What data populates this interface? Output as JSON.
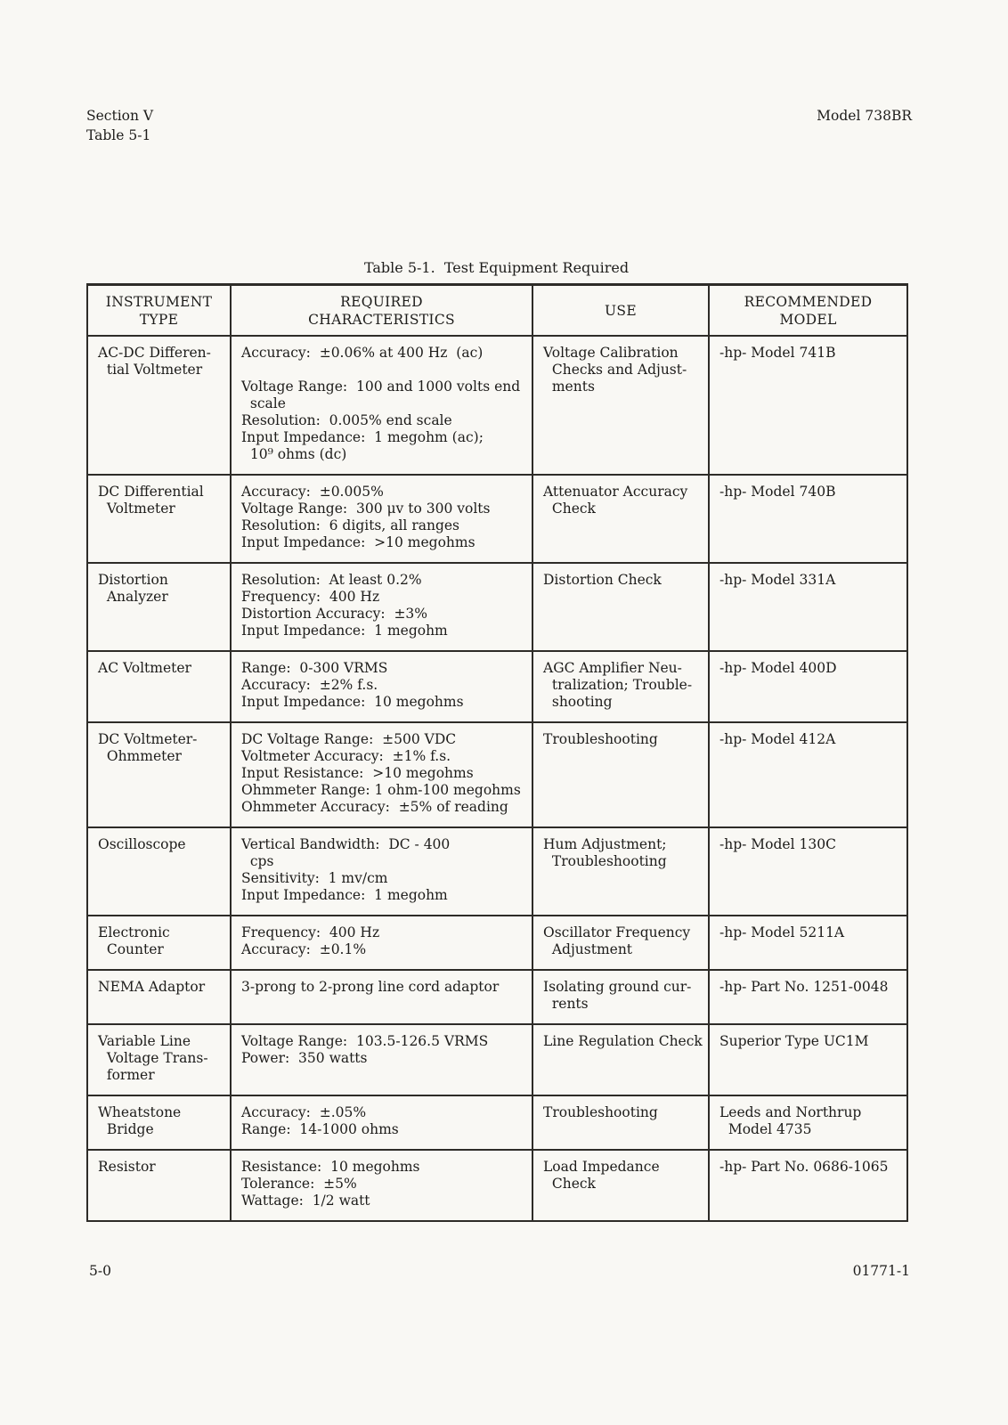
{
  "page": {
    "header": {
      "left": "Section V\nTable 5-1",
      "right": "Model 738BR"
    },
    "footer": {
      "left": "5-0",
      "right": "01771-1"
    }
  },
  "colors": {
    "paper": "#f9f8f4",
    "ink": "#1d1c1a"
  },
  "table": {
    "title": "Table 5-1.  Test Equipment Required",
    "columns": [
      "INSTRUMENT\nTYPE",
      "REQUIRED\nCHARACTERISTICS",
      "USE",
      "RECOMMENDED\nMODEL"
    ],
    "rows": [
      {
        "instrument": "AC-DC Differen-\n  tial Voltmeter",
        "characteristics": "Accuracy:  ±0.06% at 400 Hz  (ac)\n\nVoltage Range:  100 and 1000 volts end\n  scale\nResolution:  0.005% end scale\nInput Impedance:  1 megohm (ac);\n  10⁹ ohms (dc)",
        "use": "Voltage Calibration\n  Checks and Adjust-\n  ments",
        "model": "-hp- Model 741B"
      },
      {
        "instrument": "DC Differential\n  Voltmeter",
        "characteristics": "Accuracy:  ±0.005%\nVoltage Range:  300 μv to 300 volts\nResolution:  6 digits, all ranges\nInput Impedance:  >10 megohms",
        "use": "Attenuator Accuracy\n  Check",
        "model": "-hp- Model 740B"
      },
      {
        "instrument": "Distortion\n  Analyzer",
        "characteristics": "Resolution:  At least 0.2%\nFrequency:  400 Hz\nDistortion Accuracy:  ±3%\nInput Impedance:  1 megohm",
        "use": "Distortion Check",
        "model": "-hp- Model 331A"
      },
      {
        "instrument": "AC Voltmeter",
        "characteristics": "Range:  0-300 VRMS\nAccuracy:  ±2% f.s.\nInput Impedance:  10 megohms",
        "use": "AGC Amplifier Neu-\n  tralization; Trouble-\n  shooting",
        "model": "-hp- Model 400D"
      },
      {
        "instrument": "DC Voltmeter-\n  Ohmmeter",
        "characteristics": "DC Voltage Range:  ±500 VDC\nVoltmeter Accuracy:  ±1% f.s.\nInput Resistance:  >10 megohms\nOhmmeter Range: 1 ohm-100 megohms\nOhmmeter Accuracy:  ±5% of reading",
        "use": "Troubleshooting",
        "model": "-hp- Model 412A"
      },
      {
        "instrument": "Oscilloscope",
        "characteristics": "Vertical Bandwidth:  DC - 400\n  cps\nSensitivity:  1 mv/cm\nInput Impedance:  1 megohm",
        "use": "Hum Adjustment;\n  Troubleshooting",
        "model": "-hp- Model 130C"
      },
      {
        "instrument": "Electronic\n  Counter",
        "characteristics": "Frequency:  400 Hz\nAccuracy:  ±0.1%",
        "use": "Oscillator Frequency\n  Adjustment",
        "model": "-hp- Model 5211A"
      },
      {
        "instrument": "NEMA Adaptor",
        "characteristics": "3-prong to 2-prong line cord adaptor",
        "use": "Isolating ground cur-\n  rents",
        "model": "-hp- Part No. 1251-0048"
      },
      {
        "instrument": "Variable Line\n  Voltage Trans-\n  former",
        "characteristics": "Voltage Range:  103.5-126.5 VRMS\nPower:  350 watts",
        "use": "Line Regulation Check",
        "model": "Superior Type UC1M"
      },
      {
        "instrument": "Wheatstone\n  Bridge",
        "characteristics": "Accuracy:  ±.05%\nRange:  14-1000 ohms",
        "use": "Troubleshooting",
        "model": "Leeds and Northrup\n  Model 4735"
      },
      {
        "instrument": "Resistor",
        "characteristics": "Resistance:  10 megohms\nTolerance:  ±5%\nWattage:  1/2 watt",
        "use": "Load Impedance\n  Check",
        "model": "-hp- Part No. 0686-1065"
      }
    ]
  }
}
